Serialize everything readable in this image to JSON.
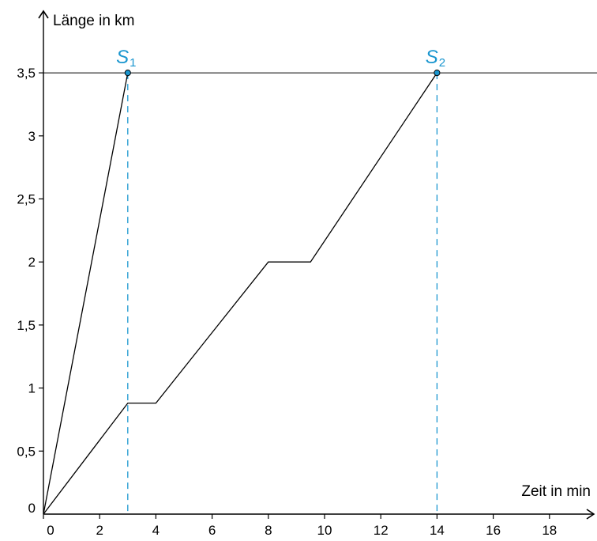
{
  "chart_data": {
    "type": "line",
    "title": "",
    "xlabel": "Zeit in min",
    "ylabel": "Länge in km",
    "xlim": [
      0,
      19.5
    ],
    "ylim": [
      0,
      3.5
    ],
    "x_ticks": [
      {
        "value": 0,
        "label": "0"
      },
      {
        "value": 2,
        "label": "2"
      },
      {
        "value": 4,
        "label": "4"
      },
      {
        "value": 6,
        "label": "6"
      },
      {
        "value": 8,
        "label": "8"
      },
      {
        "value": 10,
        "label": "10"
      },
      {
        "value": 12,
        "label": "12"
      },
      {
        "value": 14,
        "label": "14"
      },
      {
        "value": 16,
        "label": "16"
      },
      {
        "value": 18,
        "label": "18"
      }
    ],
    "y_ticks": [
      {
        "value": 0,
        "label": "0"
      },
      {
        "value": 0.5,
        "label": "0,5"
      },
      {
        "value": 1,
        "label": "1"
      },
      {
        "value": 1.5,
        "label": "1,5"
      },
      {
        "value": 2,
        "label": "2"
      },
      {
        "value": 2.5,
        "label": "2,5"
      },
      {
        "value": 3,
        "label": "3"
      },
      {
        "value": 3.5,
        "label": "3,5"
      }
    ],
    "reference_lines": [
      {
        "axis": "y",
        "value": 3.5,
        "style": "solid",
        "color": "#000000"
      },
      {
        "axis": "x",
        "value": 3,
        "style": "dashed",
        "color": "#1a96cf"
      },
      {
        "axis": "x",
        "value": 14,
        "style": "dashed",
        "color": "#1a96cf"
      }
    ],
    "series": [
      {
        "color": "#000000",
        "points": [
          {
            "x": 0,
            "y": 0
          },
          {
            "x": 3,
            "y": 3.5
          }
        ]
      },
      {
        "color": "#000000",
        "points": [
          {
            "x": 0,
            "y": 0
          },
          {
            "x": 3,
            "y": 0.88
          },
          {
            "x": 4,
            "y": 0.88
          },
          {
            "x": 8,
            "y": 2
          },
          {
            "x": 9.5,
            "y": 2
          },
          {
            "x": 14,
            "y": 3.5
          }
        ]
      }
    ],
    "annotations": [
      {
        "symbol": "S",
        "subscript": "1",
        "x": 3,
        "y": 3.5,
        "color": "#1a96cf"
      },
      {
        "symbol": "S",
        "subscript": "2",
        "x": 14,
        "y": 3.5,
        "color": "#1a96cf"
      }
    ],
    "grid": false,
    "legend": "none",
    "colors": {
      "axis": "#000000",
      "accent": "#1a96cf"
    }
  }
}
